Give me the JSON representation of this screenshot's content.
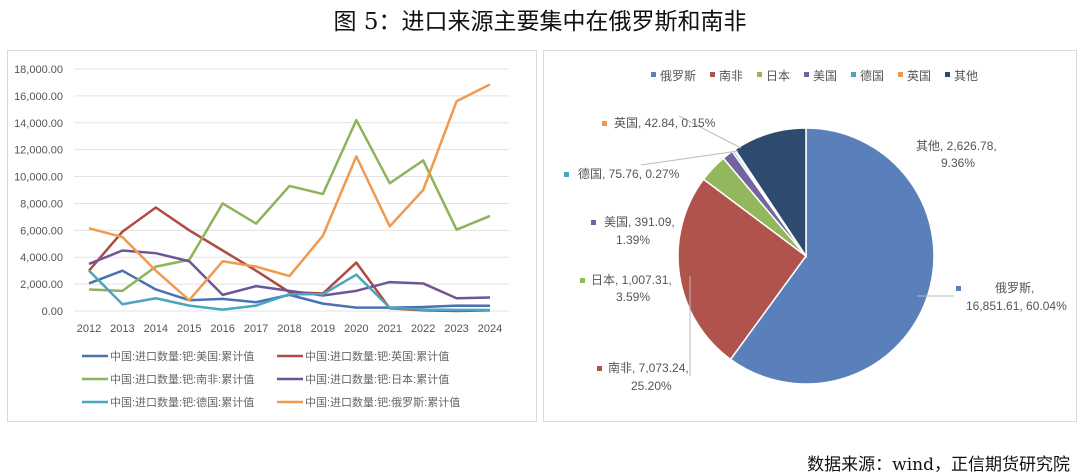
{
  "title": "图 5：进口来源主要集中在俄罗斯和南非",
  "source": "数据来源：wind，正信期货研究院",
  "chart_data": [
    {
      "type": "line",
      "title": "",
      "xlabel": "",
      "ylabel": "",
      "ylim": [
        0,
        18000
      ],
      "yticks": [
        "0.00",
        "2,000.00",
        "4,000.00",
        "6,000.00",
        "8,000.00",
        "10,000.00",
        "12,000.00",
        "14,000.00",
        "16,000.00",
        "18,000.00"
      ],
      "categories": [
        "2012",
        "2013",
        "2014",
        "2015",
        "2016",
        "2017",
        "2018",
        "2019",
        "2020",
        "2021",
        "2022",
        "2023",
        "2024"
      ],
      "legend_position": "bottom",
      "grid": true,
      "series": [
        {
          "name": "中国:进口数量:钯:美国:累计值",
          "color": "#4a72b0",
          "values": [
            2050,
            3000,
            1600,
            800,
            900,
            650,
            1200,
            550,
            250,
            250,
            300,
            400,
            391
          ]
        },
        {
          "name": "中国:进口数量:钯:英国:累计值",
          "color": "#b04a45",
          "values": [
            3000,
            5900,
            7700,
            6000,
            4500,
            3000,
            1400,
            1300,
            3600,
            200,
            50,
            0,
            43
          ]
        },
        {
          "name": "中国:进口数量:钯:南非:累计值",
          "color": "#8fb35a",
          "values": [
            1600,
            1500,
            3300,
            3800,
            8000,
            6500,
            9300,
            8700,
            14200,
            9500,
            11200,
            6050,
            7073
          ]
        },
        {
          "name": "中国:进口数量:钯:日本:累计值",
          "color": "#6e5597",
          "values": [
            3500,
            4500,
            4300,
            3700,
            1200,
            1850,
            1500,
            1150,
            1500,
            2150,
            2050,
            950,
            1007
          ]
        },
        {
          "name": "中国:进口数量:钯:德国:累计值",
          "color": "#4aa6c0",
          "values": [
            3000,
            500,
            950,
            400,
            100,
            400,
            1250,
            1250,
            2700,
            250,
            100,
            80,
            76
          ]
        },
        {
          "name": "中国:进口数量:钯:俄罗斯:累计值",
          "color": "#ef9a4f",
          "values": [
            6150,
            5500,
            3000,
            800,
            3700,
            3300,
            2600,
            5600,
            11500,
            6300,
            9000,
            15600,
            16852
          ]
        }
      ]
    },
    {
      "type": "pie",
      "title": "",
      "legend_position": "top",
      "slices": [
        {
          "name": "俄罗斯",
          "value": 16851.61,
          "value_label": "16,851.61",
          "percent": "60.04%",
          "color": "#5a80bb"
        },
        {
          "name": "南非",
          "value": 7073.24,
          "value_label": "7,073.24",
          "percent": "25.20%",
          "color": "#b0534d"
        },
        {
          "name": "日本",
          "value": 1007.31,
          "value_label": "1,007.31",
          "percent": "3.59%",
          "color": "#93b75c"
        },
        {
          "name": "美国",
          "value": 391.09,
          "value_label": "391.09",
          "percent": "1.39%",
          "color": "#7363a0"
        },
        {
          "name": "德国",
          "value": 75.76,
          "value_label": "75.76",
          "percent": "0.27%",
          "color": "#4aa6c0"
        },
        {
          "name": "英国",
          "value": 42.84,
          "value_label": "42.84",
          "percent": "0.15%",
          "color": "#ef9a4f"
        },
        {
          "name": "其他",
          "value": 2626.78,
          "value_label": "2,626.78",
          "percent": "9.36%",
          "color": "#2e4a6e"
        }
      ]
    }
  ]
}
